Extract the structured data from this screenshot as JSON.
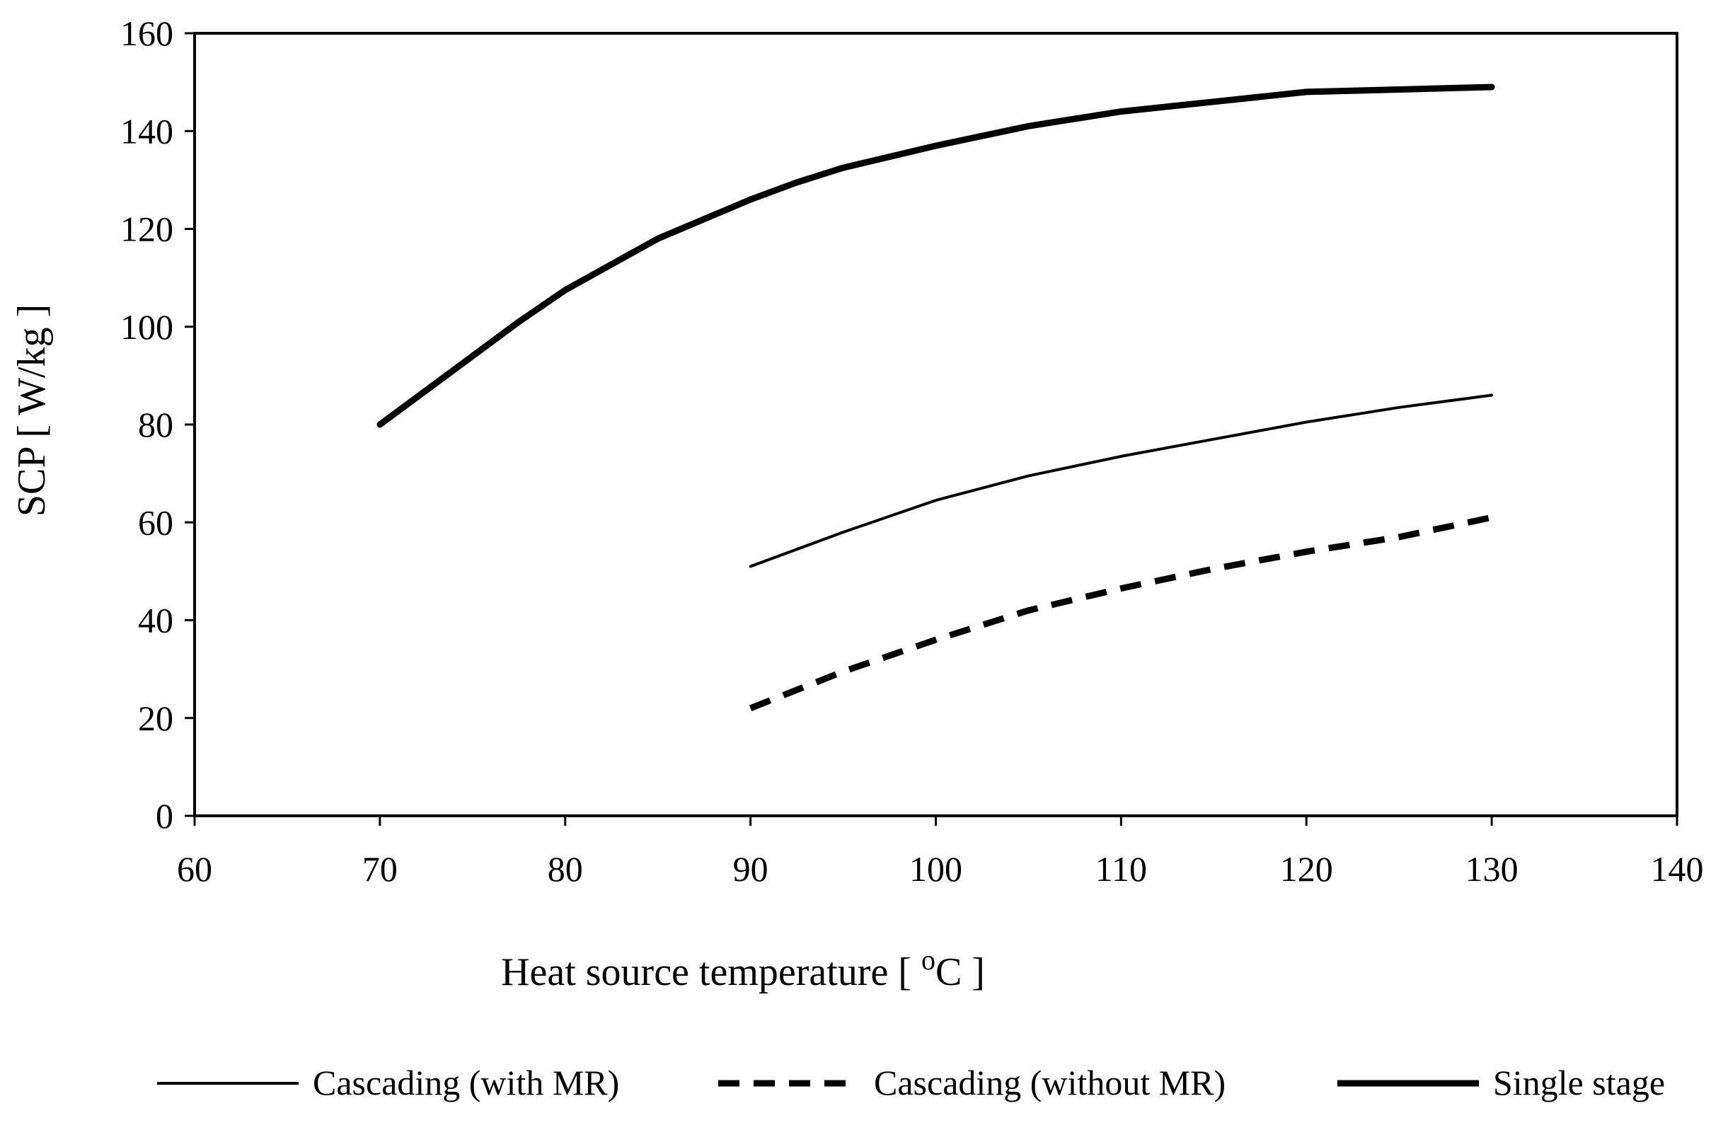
{
  "chart_data": {
    "type": "line",
    "title": "",
    "xlabel": "Heat source temperature [ ",
    "xlabel_sup": "o",
    "xlabel_suffix": "C ]",
    "ylabel": "SCP [ W/kg ]",
    "xlim": [
      60,
      140
    ],
    "ylim": [
      0,
      160
    ],
    "xticks": [
      60,
      70,
      80,
      90,
      100,
      110,
      120,
      130,
      140
    ],
    "yticks": [
      0,
      20,
      40,
      60,
      80,
      100,
      120,
      140,
      160
    ],
    "grid": false,
    "legend_position": "bottom",
    "series": [
      {
        "name": "Cascading (with MR)",
        "style": "thin-solid",
        "color": "#000000",
        "x": [
          90,
          95,
          100,
          105,
          110,
          115,
          120,
          125,
          130
        ],
        "y": [
          51,
          58,
          64.5,
          69.5,
          73.5,
          77,
          80.5,
          83.5,
          86
        ]
      },
      {
        "name": "Cascading (without MR)",
        "style": "dashed",
        "color": "#000000",
        "x": [
          90,
          95,
          100,
          105,
          110,
          115,
          120,
          125,
          130
        ],
        "y": [
          22,
          29.5,
          36,
          42,
          46.5,
          50.5,
          54,
          57,
          61
        ]
      },
      {
        "name": "Single stage",
        "style": "thick-solid",
        "color": "#000000",
        "x": [
          70,
          77.5,
          80,
          85,
          90,
          92.5,
          95,
          100,
          105,
          110,
          115,
          120,
          125,
          130
        ],
        "y": [
          80,
          101,
          107.5,
          118,
          126,
          129.5,
          132.5,
          137,
          141,
          144,
          146,
          148,
          148.5,
          149
        ]
      }
    ]
  }
}
